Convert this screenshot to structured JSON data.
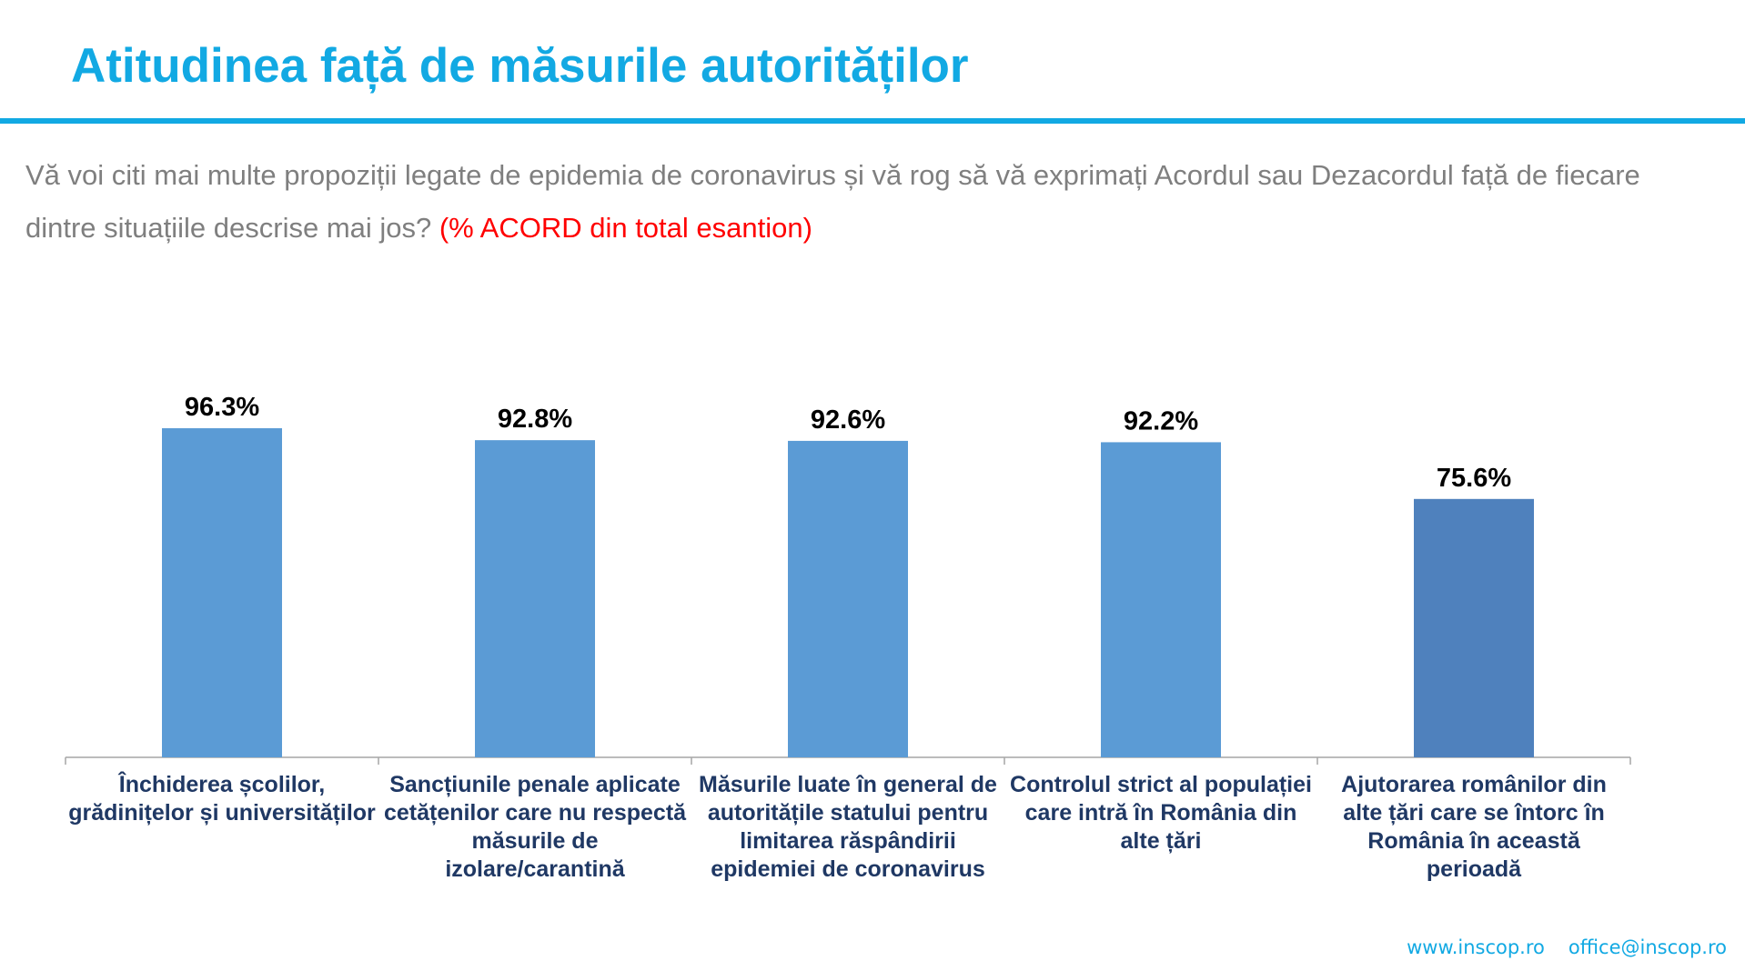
{
  "header": {
    "title": "Atitudinea față de măsurile autorităților"
  },
  "question": {
    "text": "Vă voi citi mai multe propoziții legate de epidemia de coronavirus și vă rog să vă exprimați Acordul sau Dezacordul față de fiecare dintre situațiile descrise mai jos? ",
    "highlight": "(% ACORD din total esantion)"
  },
  "colors": {
    "accent": "#12a9e3",
    "bar": "#5b9bd5",
    "bar_highlight": "#4f81bd",
    "label_text": "#1f3864",
    "question_text": "#7f7f7f",
    "highlight_text": "#ff0000"
  },
  "chart_data": {
    "type": "bar",
    "categories": [
      "Închiderea școlilor, grădinițelor și universităților",
      "Sancțiunile penale aplicate cetățenilor care nu respectă măsurile de izolare/carantină",
      "Măsurile luate în general de autoritățile statului pentru limitarea răspândirii epidemiei de coronavirus",
      "Controlul strict al populației care intră în România din alte țări",
      "Ajutorarea românilor din alte țări care se întorc în România în această perioadă"
    ],
    "values": [
      96.3,
      92.8,
      92.6,
      92.2,
      75.6
    ],
    "value_labels": [
      "96.3%",
      "92.8%",
      "92.6%",
      "92.2%",
      "75.6%"
    ],
    "title": "",
    "xlabel": "",
    "ylabel": "",
    "ylim": [
      0,
      100
    ],
    "grid": false,
    "legend": "none"
  },
  "footer": {
    "website": "www.inscop.ro",
    "email": "office@inscop.ro"
  }
}
